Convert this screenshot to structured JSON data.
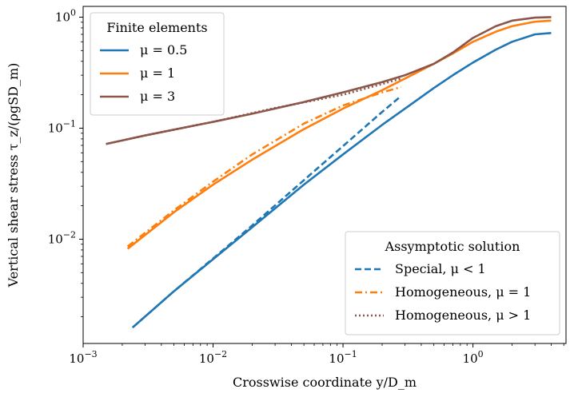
{
  "chart_data": {
    "type": "line",
    "xscale": "log",
    "yscale": "log",
    "xlim": [
      0.001,
      5.2
    ],
    "ylim": [
      0.00115,
      1.25
    ],
    "xlabel": "Crosswise coordinate y/D_m",
    "ylabel": "Vertical shear stress τ_z/(ρgSD_m)",
    "x_ticks": [
      {
        "value": 0.001,
        "base": "10",
        "exp": "−3"
      },
      {
        "value": 0.01,
        "base": "10",
        "exp": "−2"
      },
      {
        "value": 0.1,
        "base": "10",
        "exp": "−1"
      },
      {
        "value": 1,
        "base": "10",
        "exp": "0"
      }
    ],
    "y_ticks": [
      {
        "value": 0.01,
        "base": "10",
        "exp": "−2"
      },
      {
        "value": 0.1,
        "base": "10",
        "exp": "−1"
      },
      {
        "value": 1,
        "base": "10",
        "exp": "0"
      }
    ],
    "legend_finite": {
      "title": "Finite elements",
      "placement": "top-left",
      "entries": [
        "μ = 0.5",
        "μ = 1",
        "μ = 3"
      ]
    },
    "legend_asymptotic": {
      "title": "Assymptotic solution",
      "placement": "lower-right",
      "entries": [
        "Special, μ < 1",
        "Homogeneous, μ = 1",
        "Homogeneous, μ > 1"
      ]
    },
    "colors": {
      "blue": "#1f77b4",
      "orange": "#ff7f0e",
      "brown": "#8c564b"
    },
    "series": [
      {
        "name": "μ = 0.5",
        "group": "Finite elements",
        "style": "solid",
        "color": "#1f77b4",
        "x": [
          0.0024,
          0.005,
          0.01,
          0.02,
          0.05,
          0.1,
          0.2,
          0.3,
          0.5,
          0.7,
          1.0,
          1.5,
          2.0,
          3.0,
          4.0
        ],
        "y": [
          0.0016,
          0.0034,
          0.0066,
          0.0128,
          0.031,
          0.058,
          0.107,
          0.15,
          0.23,
          0.3,
          0.39,
          0.51,
          0.6,
          0.7,
          0.72
        ]
      },
      {
        "name": "μ = 1",
        "group": "Finite elements",
        "style": "solid",
        "color": "#ff7f0e",
        "x": [
          0.0022,
          0.005,
          0.01,
          0.02,
          0.05,
          0.1,
          0.2,
          0.3,
          0.5,
          0.7,
          1.0,
          1.5,
          2.0,
          3.0,
          4.0
        ],
        "y": [
          0.0082,
          0.0175,
          0.031,
          0.052,
          0.098,
          0.15,
          0.22,
          0.28,
          0.38,
          0.47,
          0.6,
          0.74,
          0.83,
          0.91,
          0.93
        ]
      },
      {
        "name": "μ = 3",
        "group": "Finite elements",
        "style": "solid",
        "color": "#8c564b",
        "x": [
          0.0015,
          0.003,
          0.005,
          0.01,
          0.02,
          0.05,
          0.1,
          0.2,
          0.3,
          0.5,
          0.7,
          1.0,
          1.5,
          2.0,
          3.0,
          4.0
        ],
        "y": [
          0.072,
          0.086,
          0.097,
          0.114,
          0.135,
          0.172,
          0.21,
          0.26,
          0.3,
          0.38,
          0.48,
          0.65,
          0.83,
          0.93,
          0.99,
          1.0
        ]
      },
      {
        "name": "Special, μ < 1",
        "group": "Assymptotic solution",
        "style": "dashed",
        "color": "#1f77b4",
        "x": [
          0.0024,
          0.005,
          0.01,
          0.02,
          0.05,
          0.1,
          0.2,
          0.28
        ],
        "y": [
          0.0016,
          0.0034,
          0.0067,
          0.0133,
          0.034,
          0.069,
          0.14,
          0.195
        ]
      },
      {
        "name": "Homogeneous, μ = 1",
        "group": "Assymptotic solution",
        "style": "dashdot",
        "color": "#ff7f0e",
        "x": [
          0.0022,
          0.005,
          0.01,
          0.02,
          0.05,
          0.1,
          0.2,
          0.28
        ],
        "y": [
          0.0086,
          0.0182,
          0.033,
          0.058,
          0.11,
          0.16,
          0.21,
          0.235
        ]
      },
      {
        "name": "Homogeneous, μ > 1",
        "group": "Assymptotic solution",
        "style": "dotted",
        "color": "#8c564b",
        "x": [
          0.0015,
          0.003,
          0.01,
          0.03,
          0.1,
          0.2,
          0.28
        ],
        "y": [
          0.072,
          0.086,
          0.114,
          0.152,
          0.2,
          0.25,
          0.28
        ]
      }
    ]
  }
}
